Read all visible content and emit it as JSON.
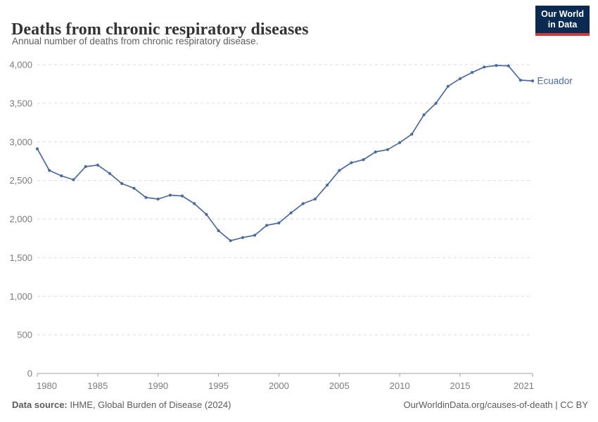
{
  "header": {
    "title": "Deaths from chronic respiratory diseases",
    "subtitle": "Annual number of deaths from chronic respiratory disease.",
    "logo": {
      "line1": "Our World",
      "line2": "in Data"
    }
  },
  "chart_data": {
    "type": "line",
    "title": "Deaths from chronic respiratory diseases",
    "xlabel": "",
    "ylabel": "",
    "x": [
      1980,
      1981,
      1982,
      1983,
      1984,
      1985,
      1986,
      1987,
      1988,
      1989,
      1990,
      1991,
      1992,
      1993,
      1994,
      1995,
      1996,
      1997,
      1998,
      1999,
      2000,
      2001,
      2002,
      2003,
      2004,
      2005,
      2006,
      2007,
      2008,
      2009,
      2010,
      2011,
      2012,
      2013,
      2014,
      2015,
      2016,
      2017,
      2018,
      2019,
      2020,
      2021
    ],
    "series": [
      {
        "name": "Ecuador",
        "color": "#4c6a9c",
        "values": [
          2910,
          2630,
          2560,
          2510,
          2680,
          2700,
          2590,
          2460,
          2400,
          2280,
          2260,
          2310,
          2300,
          2200,
          2060,
          1850,
          1720,
          1760,
          1790,
          1920,
          1950,
          2080,
          2200,
          2260,
          2440,
          2630,
          2730,
          2770,
          2870,
          2900,
          2990,
          3100,
          3350,
          3500,
          3720,
          3820,
          3900,
          3970,
          3990,
          3985,
          3800,
          3790
        ]
      }
    ],
    "ylim": [
      0,
      4000
    ],
    "yticks": [
      0,
      500,
      1000,
      1500,
      2000,
      2500,
      3000,
      3500,
      4000
    ],
    "xticks": [
      1980,
      1985,
      1990,
      1995,
      2000,
      2005,
      2010,
      2015,
      2021
    ],
    "grid": "horizontal-dashed",
    "legend": "line-end-label"
  },
  "footer": {
    "source_label": "Data source:",
    "source_text": " IHME, Global Burden of Disease (2024)",
    "right_text": "OurWorldinData.org/causes-of-death | CC BY"
  },
  "colors": {
    "line": "#4c6a9c",
    "grid": "#dcdcdc",
    "axis": "#a0a0a0",
    "tick_label": "#7c7c7c",
    "logo_bg": "#0b2a52",
    "logo_red": "#d0393e"
  }
}
